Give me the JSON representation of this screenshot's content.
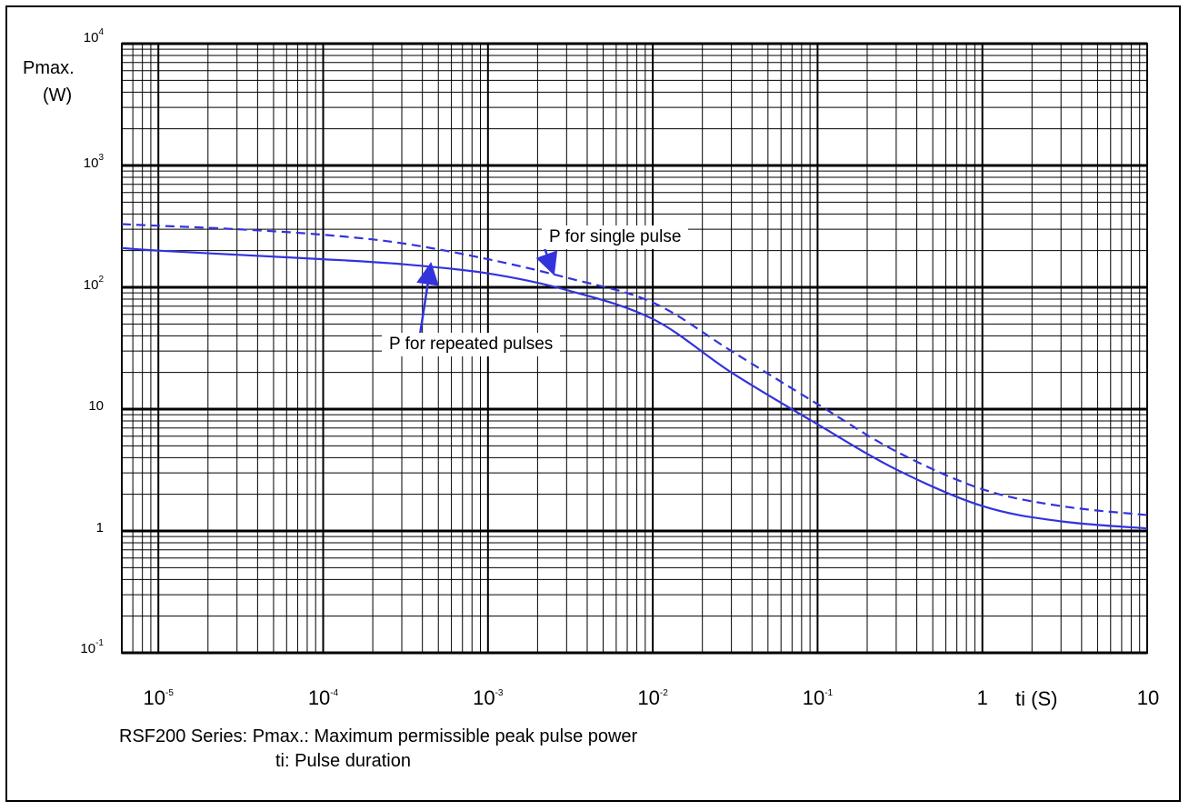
{
  "chart_data": {
    "type": "line",
    "xscale": "log",
    "yscale": "log",
    "xlim": [
      6e-06,
      10
    ],
    "ylim": [
      0.1,
      10000
    ],
    "grid": true,
    "ylabel_line1": "Pmax.",
    "ylabel_line2": "(W)",
    "xlabel": "ti (S)",
    "x_ticks": [
      {
        "base": "10",
        "exp": "-5",
        "value": 1e-05
      },
      {
        "base": "10",
        "exp": "-4",
        "value": 0.0001
      },
      {
        "base": "10",
        "exp": "-3",
        "value": 0.001
      },
      {
        "base": "10",
        "exp": "-2",
        "value": 0.01
      },
      {
        "base": "10",
        "exp": "-1",
        "value": 0.1
      },
      {
        "base": "1",
        "exp": "",
        "value": 1
      },
      {
        "base": "10",
        "exp": "",
        "value": 10
      }
    ],
    "y_ticks": [
      {
        "base": "10",
        "exp": "4",
        "value": 10000
      },
      {
        "base": "10",
        "exp": "3",
        "value": 1000
      },
      {
        "base": "10",
        "exp": "2",
        "value": 100
      },
      {
        "base": "10",
        "exp": "",
        "value": 10
      },
      {
        "base": "1",
        "exp": "",
        "value": 1
      },
      {
        "base": "10",
        "exp": "-1",
        "value": 0.1
      }
    ],
    "series": [
      {
        "name": "P for single pulse",
        "style": "dashed",
        "color": "#3333dd",
        "x": [
          6e-06,
          1e-05,
          3e-05,
          0.0001,
          0.0003,
          0.001,
          0.003,
          0.01,
          0.03,
          0.1,
          0.3,
          1,
          3,
          10
        ],
        "y": [
          330,
          320,
          300,
          270,
          230,
          170,
          120,
          75,
          30,
          11,
          4.5,
          2.2,
          1.6,
          1.35
        ]
      },
      {
        "name": "P for repeated pulses",
        "style": "solid",
        "color": "#3333dd",
        "x": [
          6e-06,
          1e-05,
          3e-05,
          0.0001,
          0.0003,
          0.001,
          0.003,
          0.01,
          0.03,
          0.1,
          0.3,
          1,
          3,
          10
        ],
        "y": [
          210,
          200,
          185,
          170,
          155,
          130,
          95,
          55,
          20,
          7.5,
          3.2,
          1.6,
          1.2,
          1.05
        ]
      }
    ],
    "annotations": [
      {
        "text": "P for single pulse",
        "series": 0,
        "arrow_x": 0.0025,
        "arrow_y": 130
      },
      {
        "text": "P for repeated pulses",
        "series": 1,
        "arrow_x": 0.00045,
        "arrow_y": 155
      }
    ]
  },
  "caption": {
    "line1": "RSF200 Series: Pmax.: Maximum permissible peak pulse power",
    "line2": "ti: Pulse duration"
  }
}
